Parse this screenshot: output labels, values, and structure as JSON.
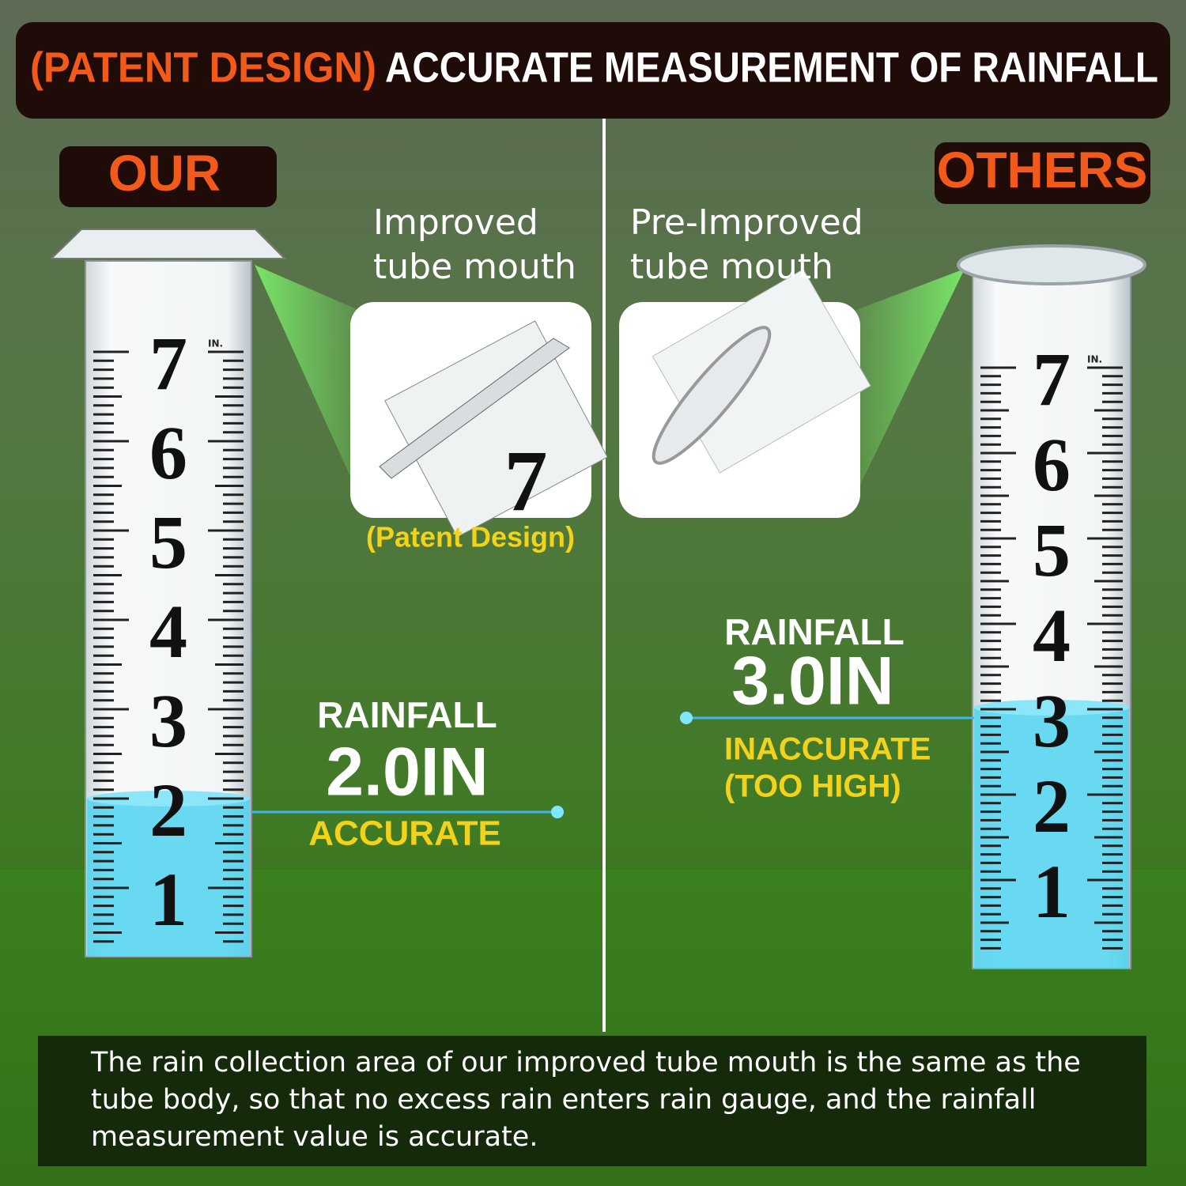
{
  "header": {
    "tag": "(PATENT DESIGN)",
    "title": "ACCURATE MEASUREMENT OF RAINFALL"
  },
  "left": {
    "badge": "OUR",
    "caption": [
      "Improved",
      "tube mouth"
    ],
    "note": "(Patent Design)",
    "reading": {
      "label": "RAINFALL",
      "value": "2.0IN",
      "verdict": [
        "ACCURATE"
      ]
    },
    "unit": "IN.",
    "scale": [
      7,
      6,
      5,
      4,
      3,
      2,
      1
    ]
  },
  "right": {
    "badge": "OTHERS",
    "caption": [
      "Pre-Improved",
      "tube mouth"
    ],
    "reading": {
      "label": "RAINFALL",
      "value": "3.0IN",
      "verdict": [
        "INACCURATE",
        "(TOO HIGH)"
      ]
    },
    "unit": "IN.",
    "scale": [
      7,
      6,
      5,
      4,
      3,
      2,
      1
    ]
  },
  "footer": {
    "lines": [
      "The rain collection area of our improved tube mouth is the same as the",
      "tube body, so that no excess rain enters rain gauge, and the rainfall",
      "measurement value is accurate."
    ]
  }
}
